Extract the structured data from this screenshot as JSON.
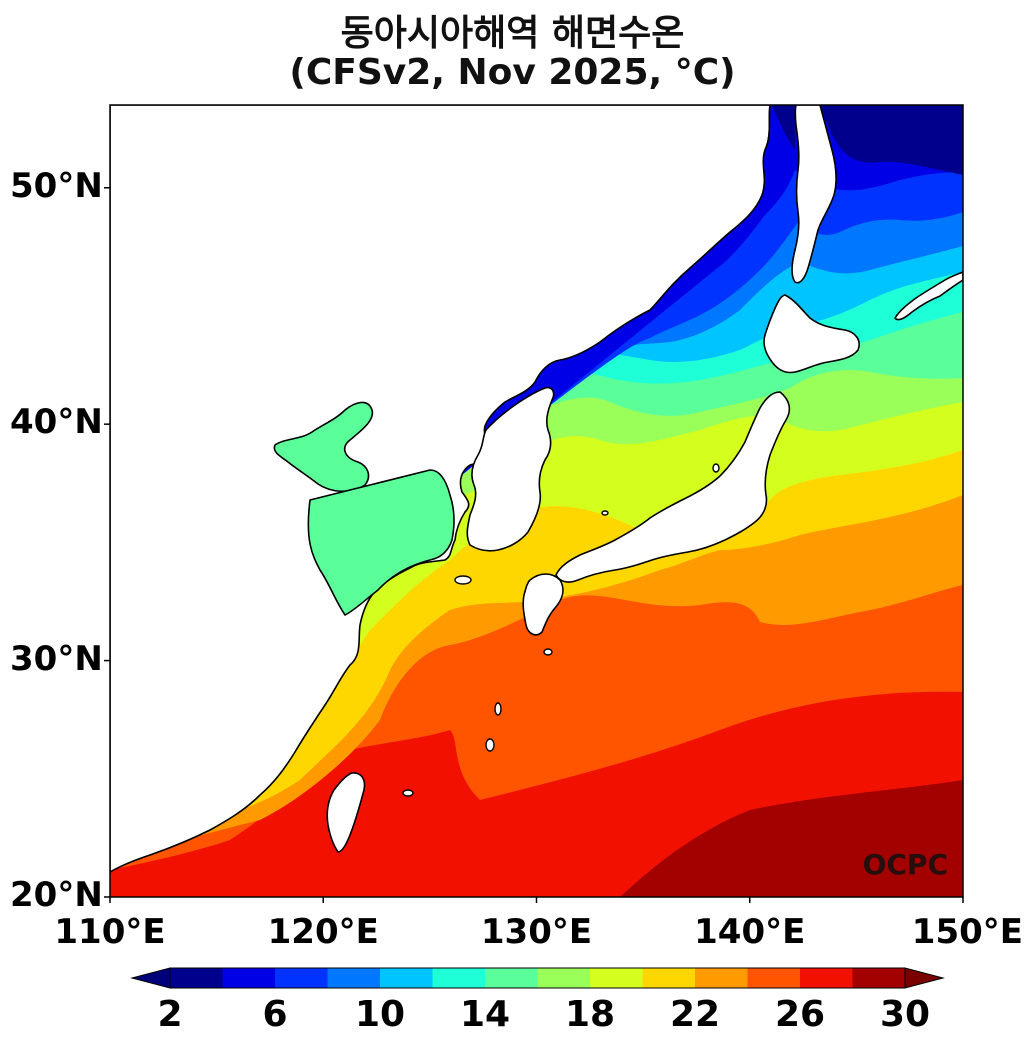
{
  "title": "동아시아해역 해면수온",
  "subtitle": "(CFSv2, Nov 2025, °C)",
  "watermark": "OCPC",
  "map": {
    "lon_range": [
      110,
      150
    ],
    "lat_range": [
      20,
      53.5
    ],
    "x_ticks": [
      {
        "value": 110,
        "label": "110°E"
      },
      {
        "value": 120,
        "label": "120°E"
      },
      {
        "value": 130,
        "label": "130°E"
      },
      {
        "value": 140,
        "label": "140°E"
      },
      {
        "value": 150,
        "label": "150°E"
      }
    ],
    "y_ticks": [
      {
        "value": 20,
        "label": "20°N"
      },
      {
        "value": 30,
        "label": "30°N"
      },
      {
        "value": 40,
        "label": "40°N"
      },
      {
        "value": 50,
        "label": "50°N"
      }
    ]
  },
  "colorbar": {
    "levels": [
      2,
      4,
      6,
      8,
      10,
      12,
      14,
      16,
      18,
      20,
      22,
      24,
      26,
      28,
      30
    ],
    "colors": [
      "#00008c",
      "#0000e6",
      "#0033ff",
      "#0077ff",
      "#00c4ff",
      "#1effd8",
      "#5aff9a",
      "#9aff58",
      "#d4ff1e",
      "#ffd700",
      "#ff9a00",
      "#ff5500",
      "#f21100",
      "#a30000"
    ],
    "under_color": "#00007a",
    "over_color": "#7a0000",
    "tick_labels": [
      {
        "value": 2,
        "label": "2"
      },
      {
        "value": 6,
        "label": "6"
      },
      {
        "value": 10,
        "label": "10"
      },
      {
        "value": 14,
        "label": "14"
      },
      {
        "value": 18,
        "label": "18"
      },
      {
        "value": 22,
        "label": "22"
      },
      {
        "value": 26,
        "label": "26"
      },
      {
        "value": 30,
        "label": "30"
      }
    ]
  }
}
